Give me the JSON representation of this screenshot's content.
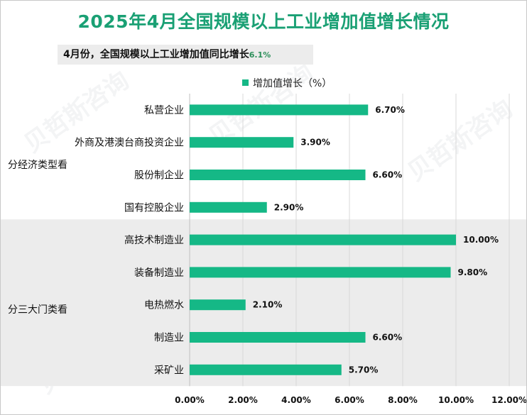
{
  "title": "2025年4月全国规模以上工业增加值增长情况",
  "subtitle": {
    "text": "4月份，全国规模以上工业增加值同比增长",
    "value": "6.1%"
  },
  "groups": [
    {
      "label": "分经济类型看",
      "first": 0,
      "last": 3,
      "shaded": false
    },
    {
      "label": "分三大门类看",
      "first": 4,
      "last": 8,
      "shaded": true
    }
  ],
  "colors": {
    "bar": "#15b886",
    "shade": "#ececec",
    "title": "#1aa074",
    "grid": "#d9d9d9"
  },
  "chart_data": {
    "type": "bar",
    "orientation": "horizontal",
    "title": "2025年4月全国规模以上工业增加值增长情况",
    "categories": [
      "私营企业",
      "外商及港澳台商投资企业",
      "股份制企业",
      "国有控股企业",
      "高技术制造业",
      "装备制造业",
      "电热燃水",
      "制造业",
      "采矿业"
    ],
    "series": [
      {
        "name": "增加值增长（%）",
        "values": [
          6.7,
          3.9,
          6.6,
          2.9,
          10.0,
          9.8,
          2.1,
          6.6,
          5.7
        ],
        "labels": [
          "6.70%",
          "3.90%",
          "6.60%",
          "2.90%",
          "10.00%",
          "9.80%",
          "2.10%",
          "6.60%",
          "5.70%"
        ]
      }
    ],
    "xlim": [
      0,
      12
    ],
    "xticks": [
      0,
      2,
      4,
      6,
      8,
      10,
      12
    ],
    "xtick_labels": [
      "0.00%",
      "2.00%",
      "4.00%",
      "6.00%",
      "8.00%",
      "10.00%",
      "12.00%"
    ],
    "legend": "top-center",
    "grid": true
  }
}
